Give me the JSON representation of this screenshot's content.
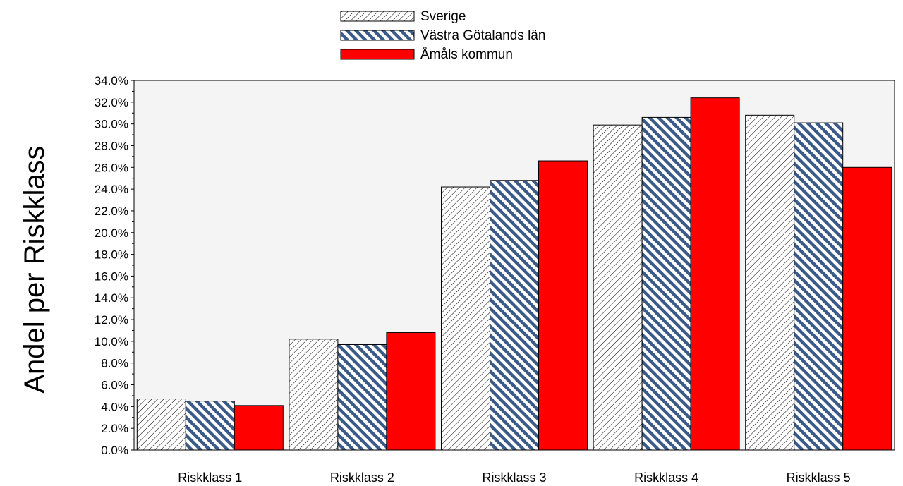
{
  "chart_data": {
    "type": "bar",
    "ylabel": "Andel per Riskklass",
    "categories": [
      "Riskklass 1",
      "Riskklass 2",
      "Riskklass 3",
      "Riskklass 4",
      "Riskklass 5"
    ],
    "series": [
      {
        "name": "Sverige",
        "pattern": "diagonal-hatch-black",
        "color": "#ffffff",
        "values": [
          4.7,
          10.2,
          24.2,
          29.9,
          30.8
        ]
      },
      {
        "name": "Västra Götalands län",
        "pattern": "diagonal-stripe-navy",
        "color": "#3a5a8a",
        "values": [
          4.5,
          9.7,
          24.8,
          30.6,
          30.1
        ]
      },
      {
        "name": "Åmåls kommun",
        "pattern": "solid",
        "color": "#ff0000",
        "values": [
          4.1,
          10.8,
          26.6,
          32.4,
          26.0
        ]
      }
    ],
    "ylim": [
      0,
      34
    ],
    "ytick_step": 2,
    "ytick_labels": [
      "0.0%",
      "2.0%",
      "4.0%",
      "6.0%",
      "8.0%",
      "10.0%",
      "12.0%",
      "14.0%",
      "16.0%",
      "18.0%",
      "20.0%",
      "22.0%",
      "24.0%",
      "26.0%",
      "28.0%",
      "30.0%",
      "32.0%",
      "34.0%"
    ],
    "legend_position": "top-center",
    "plot_background": "#f4f4f4",
    "grid": false
  }
}
